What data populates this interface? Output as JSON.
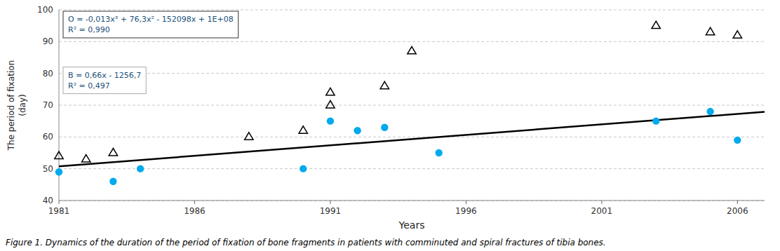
{
  "chart_data": {
    "type": "scatter",
    "xlabel": "Years",
    "ylabel": "The period of fixation\n(day)",
    "xlim": [
      1981,
      2007
    ],
    "ylim": [
      40,
      100
    ],
    "xticks": [
      1981,
      1986,
      1991,
      1996,
      2001,
      2006
    ],
    "yticks": [
      40,
      50,
      60,
      70,
      80,
      90,
      100
    ],
    "grid": true,
    "series": [
      {
        "type": "scatter",
        "marker": "circle",
        "color": "#00aaee",
        "x": [
          1981,
          1983,
          1984,
          1990,
          1991,
          1992,
          1993,
          1995,
          2003,
          2005,
          2006
        ],
        "values": [
          49,
          46,
          50,
          50,
          65,
          62,
          63,
          55,
          65,
          68,
          59
        ]
      },
      {
        "type": "scatter",
        "marker": "triangle",
        "color": "#000000",
        "x": [
          1981,
          1982,
          1983,
          1988,
          1990,
          1991,
          1991,
          1993,
          1994,
          2003,
          2005,
          2006
        ],
        "values": [
          54,
          53,
          55,
          60,
          62,
          70,
          74,
          76,
          87,
          95,
          93,
          92
        ]
      },
      {
        "type": "line",
        "line_style": "solid",
        "color": "#000000",
        "x": [
          1981,
          2007
        ],
        "values": [
          50.76,
          67.92
        ]
      }
    ],
    "annotations": [
      {
        "text": [
          "O = -0,013x³ + 76,3x² - 152098x + 1E+08",
          "R² = 0,990"
        ],
        "color": "#1a4f7a"
      },
      {
        "text": [
          "B = 0,66x - 1256,7",
          "R² = 0,497"
        ],
        "color": "#1a4f7a"
      }
    ],
    "caption": "Figure 1. Dynamics of the duration of the period of fixation of bone fragments in patients with comminuted and spiral fractures of tibia bones."
  }
}
